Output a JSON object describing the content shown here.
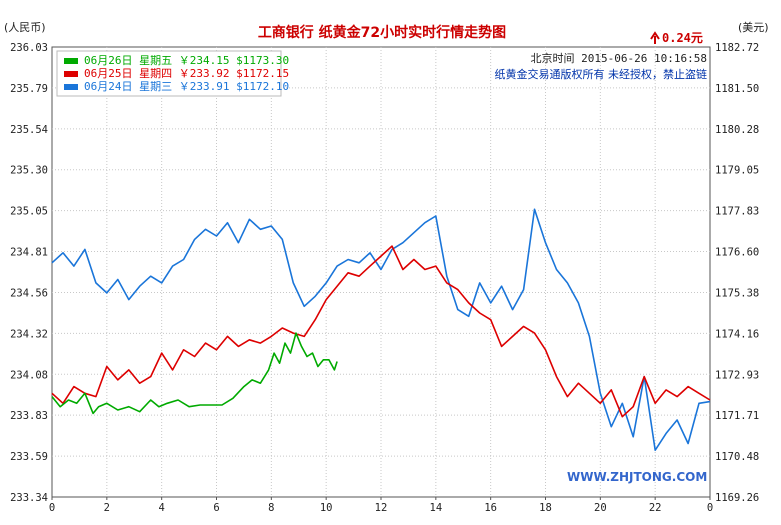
{
  "chart_data": {
    "type": "line",
    "title": "工商银行  纸黄金72小时实时行情走势图",
    "change_label": "0.24元",
    "left_unit": "(人民币)",
    "right_unit": "(美元)",
    "time_label": "北京时间  2015-06-26  10:16:58",
    "copyright": "纸黄金交易通版权所有  未经授权，禁止盗链",
    "watermark": "WWW.ZHJTONG.COM",
    "xlim": [
      0,
      24
    ],
    "x_ticks": [
      "0",
      "2",
      "4",
      "6",
      "8",
      "10",
      "12",
      "14",
      "16",
      "18",
      "20",
      "22",
      "0"
    ],
    "ylim_left": [
      233.34,
      236.03
    ],
    "ylim_right": [
      1169.26,
      1182.72
    ],
    "y_ticks_left": [
      "236.03",
      "235.79",
      "235.54",
      "235.30",
      "235.05",
      "234.81",
      "234.56",
      "234.32",
      "234.08",
      "233.83",
      "233.59",
      "233.34"
    ],
    "y_ticks_right": [
      "1182.72",
      "1181.50",
      "1180.28",
      "1179.05",
      "1177.83",
      "1176.60",
      "1175.38",
      "1174.16",
      "1172.93",
      "1171.71",
      "1170.48",
      "1169.26"
    ],
    "grid": true,
    "legend_position": "top-left",
    "series": [
      {
        "name": "06月26日  星期五  ￥234.15 $1173.30",
        "color": "#00aa00",
        "x": [
          0,
          0.3,
          0.6,
          0.9,
          1.2,
          1.5,
          1.7,
          2.0,
          2.4,
          2.8,
          3.2,
          3.6,
          3.9,
          4.2,
          4.6,
          5.0,
          5.4,
          5.8,
          6.2,
          6.6,
          7.0,
          7.3,
          7.6,
          7.9,
          8.1,
          8.3,
          8.5,
          8.7,
          8.9,
          9.1,
          9.3,
          9.5,
          9.7,
          9.9,
          10.1,
          10.3,
          10.4
        ],
        "y": [
          233.94,
          233.88,
          233.92,
          233.9,
          233.96,
          233.84,
          233.88,
          233.9,
          233.86,
          233.88,
          233.85,
          233.92,
          233.88,
          233.9,
          233.92,
          233.88,
          233.89,
          233.89,
          233.89,
          233.93,
          234.0,
          234.04,
          234.02,
          234.1,
          234.2,
          234.14,
          234.26,
          234.2,
          234.32,
          234.24,
          234.18,
          234.2,
          234.12,
          234.16,
          234.16,
          234.1,
          234.15
        ]
      },
      {
        "name": "06月25日  星期四  ￥233.92 $1172.15",
        "color": "#dd0000",
        "x": [
          0,
          0.4,
          0.8,
          1.2,
          1.6,
          2.0,
          2.4,
          2.8,
          3.2,
          3.6,
          4.0,
          4.4,
          4.8,
          5.2,
          5.6,
          6.0,
          6.4,
          6.8,
          7.2,
          7.6,
          8.0,
          8.4,
          8.8,
          9.2,
          9.6,
          10.0,
          10.4,
          10.8,
          11.2,
          11.6,
          12.0,
          12.4,
          12.8,
          13.2,
          13.6,
          14.0,
          14.4,
          14.8,
          15.2,
          15.6,
          16.0,
          16.4,
          16.8,
          17.2,
          17.6,
          18.0,
          18.4,
          18.8,
          19.2,
          19.6,
          20.0,
          20.4,
          20.8,
          21.2,
          21.6,
          22.0,
          22.4,
          22.8,
          23.2,
          23.6,
          24.0
        ],
        "y": [
          233.96,
          233.9,
          234.0,
          233.96,
          233.94,
          234.12,
          234.04,
          234.1,
          234.02,
          234.06,
          234.2,
          234.1,
          234.22,
          234.18,
          234.26,
          234.22,
          234.3,
          234.24,
          234.28,
          234.26,
          234.3,
          234.35,
          234.32,
          234.3,
          234.4,
          234.52,
          234.6,
          234.68,
          234.66,
          234.72,
          234.78,
          234.84,
          234.7,
          234.76,
          234.7,
          234.72,
          234.62,
          234.58,
          234.5,
          234.44,
          234.4,
          234.24,
          234.3,
          234.36,
          234.32,
          234.22,
          234.06,
          233.94,
          234.02,
          233.96,
          233.9,
          233.98,
          233.82,
          233.88,
          234.06,
          233.9,
          233.98,
          233.94,
          234.0,
          233.96,
          233.92
        ]
      },
      {
        "name": "06月24日  星期三  ￥233.91 $1172.10",
        "color": "#1a75d9",
        "x": [
          0,
          0.4,
          0.8,
          1.2,
          1.6,
          2.0,
          2.4,
          2.8,
          3.2,
          3.6,
          4.0,
          4.4,
          4.8,
          5.2,
          5.6,
          6.0,
          6.4,
          6.8,
          7.2,
          7.6,
          8.0,
          8.4,
          8.8,
          9.2,
          9.6,
          10.0,
          10.4,
          10.8,
          11.2,
          11.6,
          12.0,
          12.4,
          12.8,
          13.2,
          13.6,
          14.0,
          14.4,
          14.8,
          15.2,
          15.6,
          16.0,
          16.4,
          16.8,
          17.2,
          17.6,
          18.0,
          18.4,
          18.8,
          19.2,
          19.6,
          20.0,
          20.4,
          20.8,
          21.2,
          21.6,
          22.0,
          22.4,
          22.8,
          23.2,
          23.6,
          24.0
        ],
        "y": [
          234.74,
          234.8,
          234.72,
          234.82,
          234.62,
          234.56,
          234.64,
          234.52,
          234.6,
          234.66,
          234.62,
          234.72,
          234.76,
          234.88,
          234.94,
          234.9,
          234.98,
          234.86,
          235.0,
          234.94,
          234.96,
          234.88,
          234.62,
          234.48,
          234.54,
          234.62,
          234.72,
          234.76,
          234.74,
          234.8,
          234.7,
          234.82,
          234.86,
          234.92,
          234.98,
          235.02,
          234.66,
          234.46,
          234.42,
          234.62,
          234.5,
          234.6,
          234.46,
          234.58,
          235.06,
          234.86,
          234.7,
          234.62,
          234.5,
          234.3,
          233.96,
          233.76,
          233.9,
          233.7,
          234.06,
          233.62,
          233.72,
          233.8,
          233.66,
          233.9,
          233.91
        ]
      }
    ]
  }
}
